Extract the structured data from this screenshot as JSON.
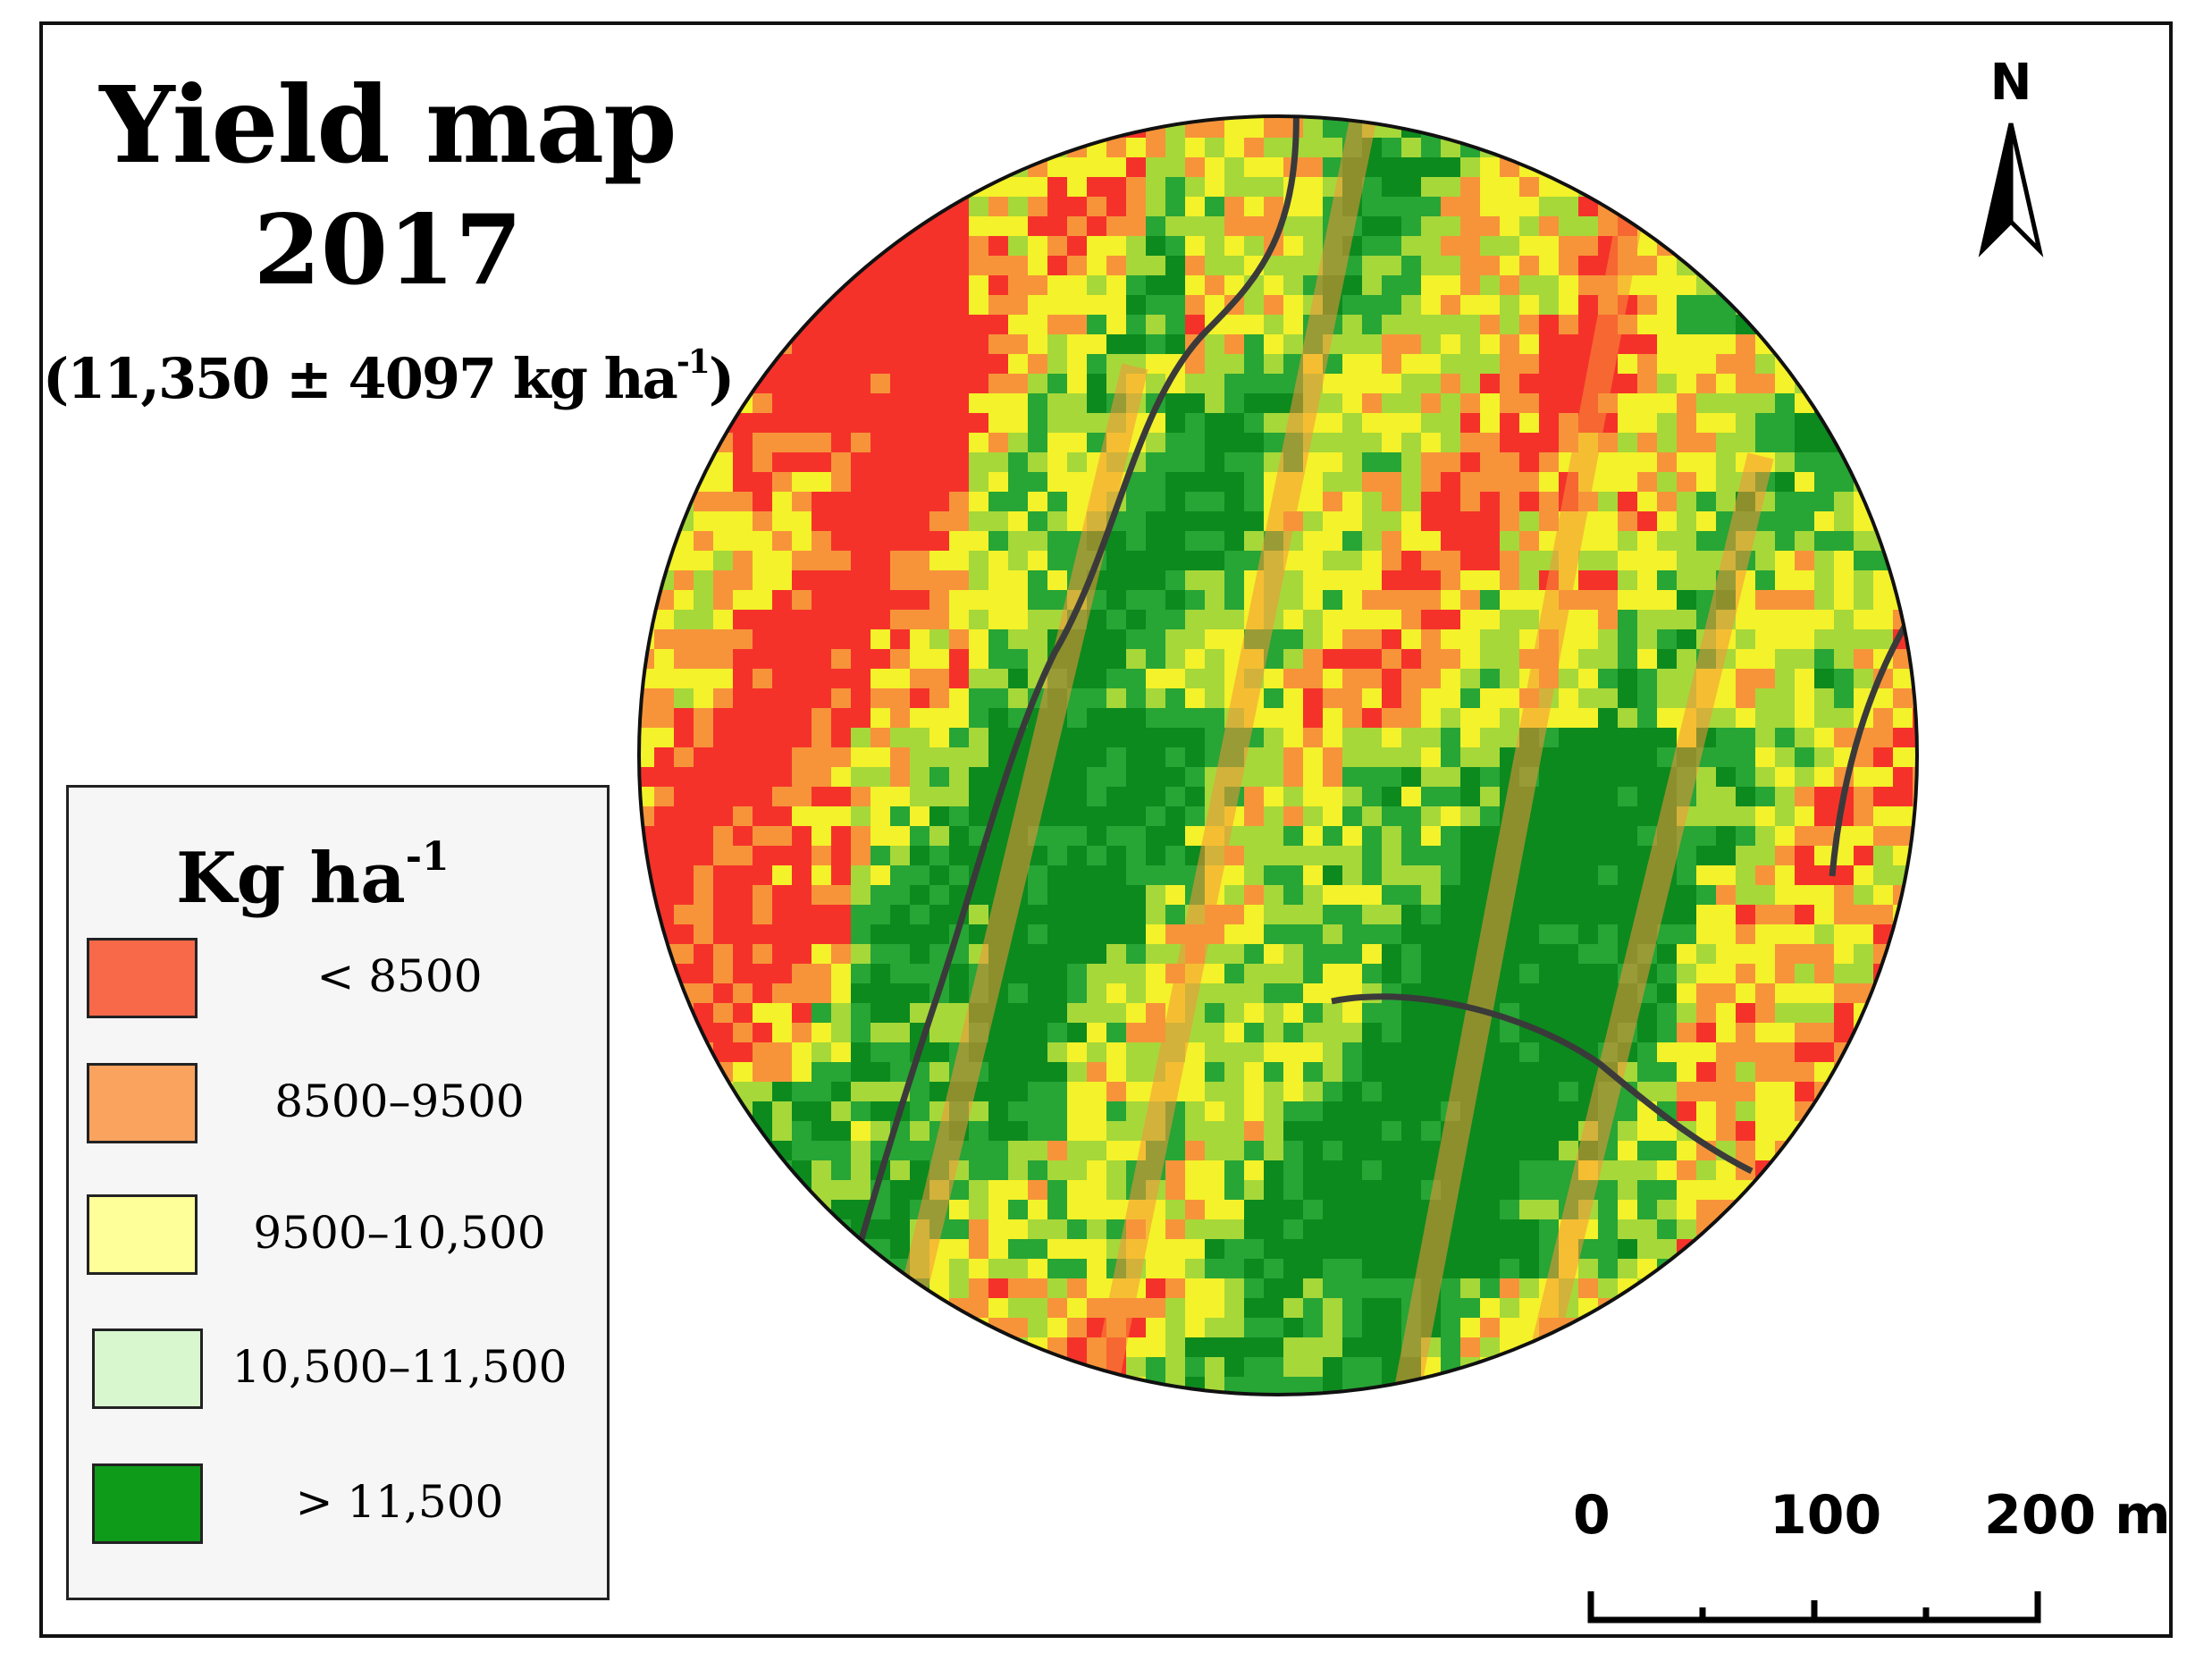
{
  "title": {
    "line1": "Yield map",
    "line2": "2017",
    "subtitle_main": "(11,350 ± 4097 kg ha",
    "subtitle_sup": "-1",
    "subtitle_end": ")"
  },
  "north_arrow": {
    "label": "N",
    "icon": "north-arrow-icon"
  },
  "legend": {
    "title_main": "Kg ha",
    "title_sup": "-1",
    "items": [
      {
        "label": "< 8500",
        "color": "#f8694a"
      },
      {
        "label": "8500–9500",
        "color": "#f9a35f"
      },
      {
        "label": "9500–10,500",
        "color": "#ffff99"
      },
      {
        "label": "10,500–11,500",
        "color": "#d9f7cf"
      },
      {
        "label": "> 11,500",
        "color": "#0e9b1a"
      }
    ]
  },
  "scale_bar": {
    "labels": [
      "0",
      "100",
      "200 m"
    ],
    "values": [
      0,
      100,
      200
    ],
    "unit": "m"
  },
  "colors": {
    "red": "#f5322a",
    "orange": "#f7943a",
    "yellow": "#f4f22a",
    "light_green": "#a6d83a",
    "green": "#27a535",
    "dark_green": "#0c8a1e",
    "road": "#3a3a3a"
  }
}
